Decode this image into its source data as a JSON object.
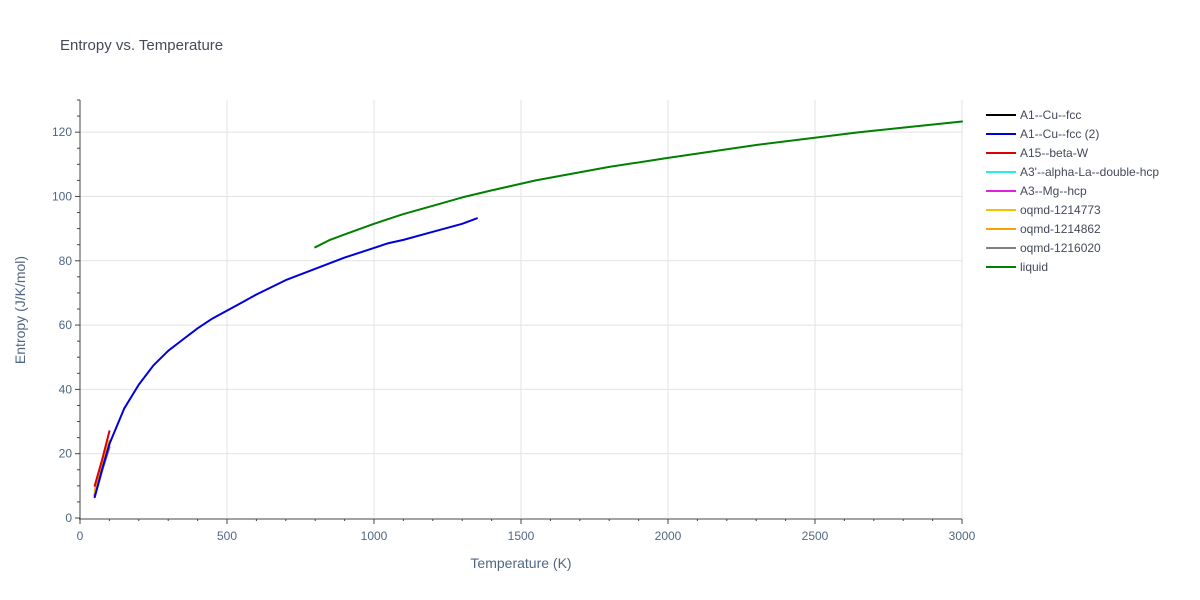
{
  "chart_data": {
    "type": "line",
    "title": "Entropy vs. Temperature",
    "xlabel": "Temperature (K)",
    "ylabel": "Entropy (J/K/mol)",
    "xlim": [
      0,
      3000
    ],
    "ylim": [
      0,
      130
    ],
    "x_ticks": [
      0,
      500,
      1000,
      1500,
      2000,
      2500,
      3000
    ],
    "y_ticks": [
      0,
      20,
      40,
      60,
      80,
      100,
      120
    ],
    "grid": true,
    "legend_position": "right",
    "series": [
      {
        "name": "A1--Cu--fcc",
        "color": "#000000",
        "x": [
          50,
          75,
          100
        ],
        "y": [
          7,
          15,
          22
        ]
      },
      {
        "name": "A1--Cu--fcc (2)",
        "color": "#0000dd",
        "x": [
          50,
          75,
          100,
          150,
          200,
          250,
          300,
          350,
          400,
          450,
          500,
          550,
          600,
          700,
          800,
          900,
          1000,
          1050,
          1100,
          1200,
          1300,
          1350
        ],
        "y": [
          6.5,
          15,
          23,
          34,
          41.5,
          47.5,
          52,
          55.5,
          59,
          62,
          64.5,
          67,
          69.5,
          74,
          77.5,
          81,
          84,
          85.5,
          86.5,
          89,
          91.5,
          93.2
        ]
      },
      {
        "name": "A15--beta-W",
        "color": "#dd0000",
        "x": [
          50,
          75,
          100
        ],
        "y": [
          10,
          18,
          27
        ]
      },
      {
        "name": "A3'--alpha-La--double-hcp",
        "color": "#22eeee",
        "x": [
          50,
          75,
          100
        ],
        "y": [
          7.5,
          15.5,
          23
        ]
      },
      {
        "name": "A3--Mg--hcp",
        "color": "#dd22dd",
        "x": [
          50,
          75,
          100
        ],
        "y": [
          7.3,
          15.3,
          22.8
        ]
      },
      {
        "name": "oqmd-1214773",
        "color": "#f5c200",
        "x": [
          50,
          75,
          100
        ],
        "y": [
          8,
          16,
          23.5
        ]
      },
      {
        "name": "oqmd-1214862",
        "color": "#f5a300",
        "x": [
          50,
          75,
          100
        ],
        "y": [
          8.5,
          16.5,
          24
        ]
      },
      {
        "name": "oqmd-1216020",
        "color": "#808080",
        "x": [
          50,
          75,
          100
        ],
        "y": [
          6.5,
          14.5,
          22
        ]
      },
      {
        "name": "liquid",
        "color": "#008000",
        "x": [
          800,
          850,
          900,
          1000,
          1100,
          1200,
          1300,
          1400,
          1550,
          1800,
          2000,
          2300,
          2650,
          3000
        ],
        "y": [
          84.2,
          86.5,
          88.2,
          91.5,
          94.5,
          97.1,
          99.7,
          101.9,
          105,
          109.2,
          112,
          116,
          120,
          123.3
        ]
      }
    ]
  }
}
